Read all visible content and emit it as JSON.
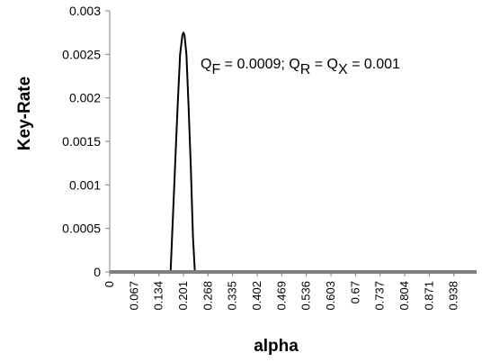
{
  "chart_data": {
    "type": "line",
    "xlabel": "alpha",
    "ylabel": "Key-Rate",
    "ylim": [
      0,
      0.003
    ],
    "y_ticks": [
      "0",
      "0.0005",
      "0.001",
      "0.0015",
      "0.002",
      "0.0025",
      "0.003"
    ],
    "y_tick_values": [
      0,
      0.0005,
      0.001,
      0.0015,
      0.002,
      0.0025,
      0.003
    ],
    "x_ticks": [
      "0",
      "0.067",
      "0.134",
      "0.201",
      "0.268",
      "0.335",
      "0.402",
      "0.469",
      "0.536",
      "0.603",
      "0.67",
      "0.737",
      "0.804",
      "0.871",
      "0.938"
    ],
    "x_tick_values": [
      0,
      0.067,
      0.134,
      0.201,
      0.268,
      0.335,
      0.402,
      0.469,
      0.536,
      0.603,
      0.67,
      0.737,
      0.804,
      0.871,
      0.938
    ],
    "xlim": [
      0,
      1
    ],
    "grid": false,
    "annotation": {
      "q_f_label": "Q",
      "q_f_sub": "F",
      "q_f_value": " = 0.0009; ",
      "q_r_label": "Q",
      "q_r_sub": "R",
      "q_x_prefix": " = Q",
      "q_x_sub": "X",
      "q_x_value": " = 0.001"
    },
    "series": [
      {
        "color": "#000000",
        "x": [
          0,
          0.166,
          0.175,
          0.185,
          0.192,
          0.198,
          0.201,
          0.204,
          0.209,
          0.215,
          0.221,
          0.227,
          0.232,
          1.0
        ],
        "y": [
          0,
          0,
          0.0009,
          0.0019,
          0.0025,
          0.00272,
          0.00275,
          0.00272,
          0.0025,
          0.0019,
          0.0012,
          0.0004,
          0,
          0
        ]
      }
    ],
    "colors": {
      "axis_line": "#808080",
      "tick": "#808080",
      "line": "#000000"
    }
  }
}
